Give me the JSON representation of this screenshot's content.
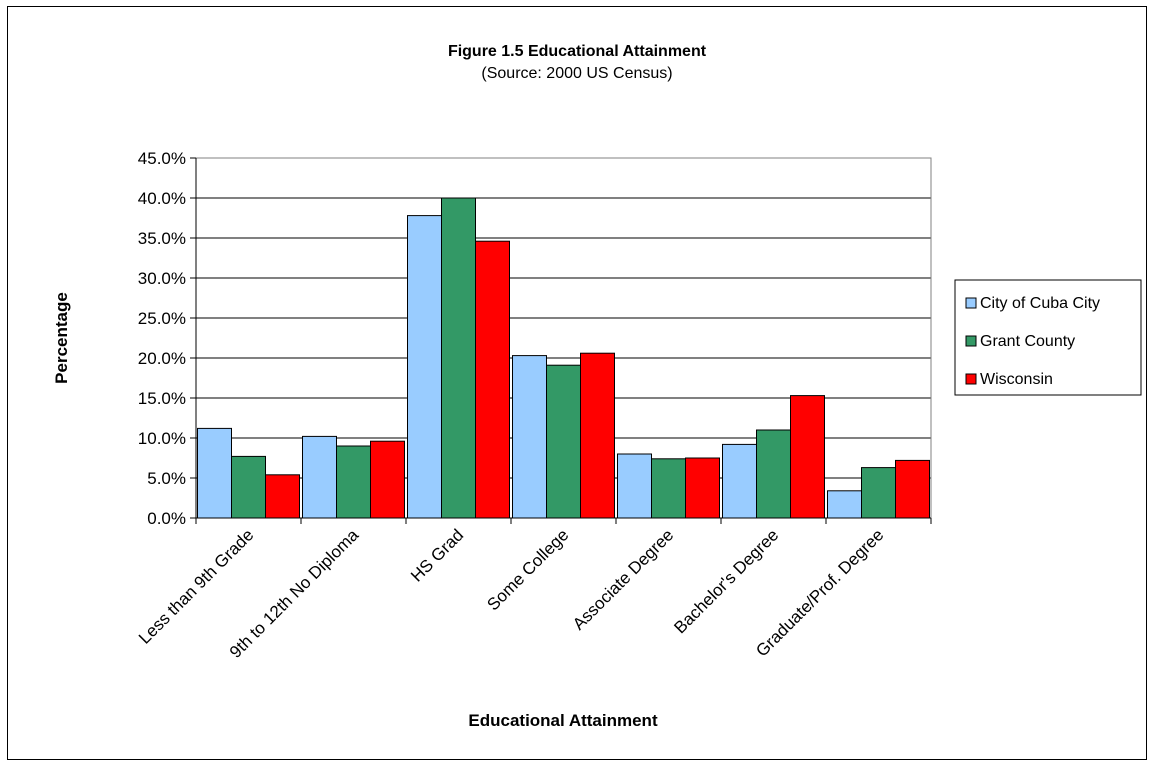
{
  "chart_data": {
    "type": "bar",
    "title": "Figure 1.5 Educational Attainment",
    "subtitle": "(Source: 2000 US Census)",
    "xlabel": "Educational Attainment",
    "ylabel": "Percentage",
    "ylim": [
      0,
      45
    ],
    "ytick_step": 5,
    "ytick_labels": [
      "0.0%",
      "5.0%",
      "10.0%",
      "15.0%",
      "20.0%",
      "25.0%",
      "30.0%",
      "35.0%",
      "40.0%",
      "45.0%"
    ],
    "grid": true,
    "legend_position": "right",
    "categories": [
      "Less than 9th Grade",
      "9th to 12th No Diploma",
      "HS Grad",
      "Some College",
      "Associate Degree",
      "Bachelor's Degree",
      "Graduate/Prof. Degree"
    ],
    "series": [
      {
        "name": "City of Cuba City",
        "color": "#99ccff",
        "values": [
          11.2,
          10.2,
          37.8,
          20.3,
          8.0,
          9.2,
          3.4
        ]
      },
      {
        "name": "Grant County",
        "color": "#339966",
        "values": [
          7.7,
          9.0,
          40.0,
          19.1,
          7.4,
          11.0,
          6.3
        ]
      },
      {
        "name": "Wisconsin",
        "color": "#ff0000",
        "values": [
          5.4,
          9.6,
          34.6,
          20.6,
          7.5,
          15.3,
          7.2
        ]
      }
    ]
  }
}
